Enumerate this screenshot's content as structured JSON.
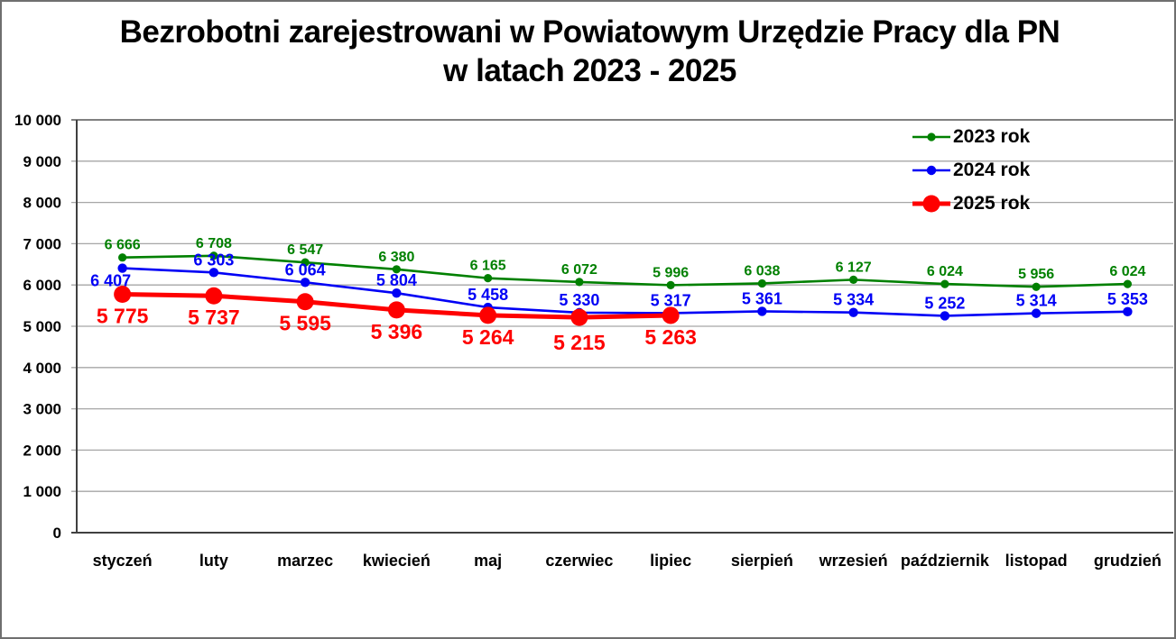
{
  "title": {
    "line1": "Bezrobotni zarejestrowani w Powiatowym Urzędzie Pracy dla PN",
    "line2": "w latach 2023 - 2025"
  },
  "chart_data": {
    "type": "line",
    "title": "Bezrobotni zarejestrowani w Powiatowym Urzędzie Pracy dla PN w latach 2023 - 2025",
    "categories": [
      "styczeń",
      "luty",
      "marzec",
      "kwiecień",
      "maj",
      "czerwiec",
      "lipiec",
      "sierpień",
      "wrzesień",
      "październik",
      "listopad",
      "grudzień"
    ],
    "series": [
      {
        "name": "2023 rok",
        "color": "#008000",
        "values": [
          6666,
          6708,
          6547,
          6380,
          6165,
          6072,
          5996,
          6038,
          6127,
          6024,
          5956,
          6024
        ],
        "line_width": 2.6,
        "marker_radius": 4.6,
        "label_size": 16,
        "label_dy": -9,
        "label_overrides": {}
      },
      {
        "name": "2024 rok",
        "color": "#0000f5",
        "values": [
          6407,
          6303,
          6064,
          5804,
          5458,
          5330,
          5317,
          5361,
          5334,
          5252,
          5314,
          5353
        ],
        "line_width": 2.6,
        "marker_radius": 5.2,
        "label_size": 18,
        "label_dy": -8,
        "label_overrides": {
          "0": {
            "dy": 20,
            "dx": -13
          }
        }
      },
      {
        "name": "2025 rok",
        "color": "#fe0000",
        "values": [
          5775,
          5737,
          5595,
          5396,
          5264,
          5215,
          5263
        ],
        "line_width": 5,
        "marker_radius": 9.5,
        "label_size": 23,
        "label_dy": 32,
        "label_overrides": {
          "5": {
            "dy": 36
          }
        }
      }
    ],
    "ylim": [
      0,
      10000
    ],
    "yticks": [
      0,
      1000,
      2000,
      3000,
      4000,
      5000,
      6000,
      7000,
      8000,
      9000,
      10000
    ],
    "grid": true,
    "value_labels": true,
    "legend_position": "upper-right",
    "colors": {
      "gridline": "#a6a6a6",
      "top_gridline": "#808080",
      "axis": "#404040",
      "text": "#000000"
    }
  }
}
